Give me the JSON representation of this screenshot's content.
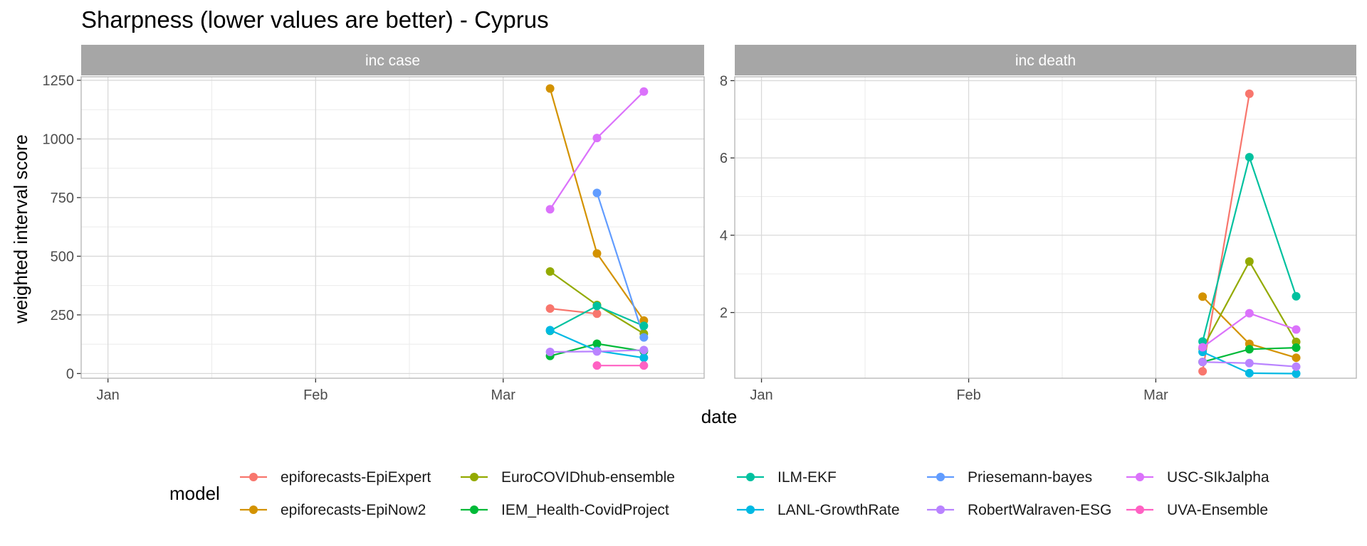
{
  "chart_data": {
    "type": "line",
    "title": "Sharpness (lower values are better) - Cyprus",
    "xlabel": "date",
    "ylabel": "weighted interval score",
    "legend_title": "model",
    "legend_position": "bottom",
    "grid": true,
    "x_ticks": [
      "Jan",
      "Feb",
      "Mar"
    ],
    "x_tick_dates": [
      "2021-01-01",
      "2021-02-01",
      "2021-03-01"
    ],
    "xlim": [
      "2020-12-28",
      "2021-03-31"
    ],
    "models": [
      {
        "name": "epiforecasts-EpiExpert",
        "color": "#F8766D"
      },
      {
        "name": "epiforecasts-EpiNow2",
        "color": "#D39200"
      },
      {
        "name": "EuroCOVIDhub-ensemble",
        "color": "#93AA00"
      },
      {
        "name": "IEM_Health-CovidProject",
        "color": "#00BA38"
      },
      {
        "name": "ILM-EKF",
        "color": "#00C19F"
      },
      {
        "name": "LANL-GrowthRate",
        "color": "#00B9E3"
      },
      {
        "name": "Priesemann-bayes",
        "color": "#619CFF"
      },
      {
        "name": "RobertWalraven-ESG",
        "color": "#B983FF"
      },
      {
        "name": "USC-SIkJalpha",
        "color": "#DB72FB"
      },
      {
        "name": "UVA-Ensemble",
        "color": "#FF61C3"
      }
    ],
    "panels": [
      {
        "label": "inc case",
        "y_ticks": [
          0,
          250,
          500,
          750,
          1000,
          1250
        ],
        "ylim": [
          -20,
          1265
        ],
        "series": [
          {
            "name": "epiforecasts-EpiExpert",
            "x": [
              "2021-03-08",
              "2021-03-15"
            ],
            "y": [
              277,
              255
            ]
          },
          {
            "name": "epiforecasts-EpiNow2",
            "x": [
              "2021-03-08",
              "2021-03-15",
              "2021-03-22"
            ],
            "y": [
              1215,
              512,
              226
            ]
          },
          {
            "name": "EuroCOVIDhub-ensemble",
            "x": [
              "2021-03-08",
              "2021-03-15",
              "2021-03-22"
            ],
            "y": [
              435,
              292,
              170
            ]
          },
          {
            "name": "IEM_Health-CovidProject",
            "x": [
              "2021-03-08",
              "2021-03-15",
              "2021-03-22"
            ],
            "y": [
              75,
              127,
              95
            ]
          },
          {
            "name": "ILM-EKF",
            "x": [
              "2021-03-08",
              "2021-03-15",
              "2021-03-22"
            ],
            "y": [
              182,
              288,
              203
            ]
          },
          {
            "name": "LANL-GrowthRate",
            "x": [
              "2021-03-08",
              "2021-03-15",
              "2021-03-22"
            ],
            "y": [
              185,
              97,
              67
            ]
          },
          {
            "name": "Priesemann-bayes",
            "x": [
              "2021-03-15",
              "2021-03-22"
            ],
            "y": [
              770,
              154
            ]
          },
          {
            "name": "RobertWalraven-ESG",
            "x": [
              "2021-03-08",
              "2021-03-15",
              "2021-03-22"
            ],
            "y": [
              92,
              94,
              100
            ]
          },
          {
            "name": "USC-SIkJalpha",
            "x": [
              "2021-03-08",
              "2021-03-15",
              "2021-03-22"
            ],
            "y": [
              700,
              1004,
              1202
            ]
          },
          {
            "name": "UVA-Ensemble",
            "x": [
              "2021-03-15",
              "2021-03-22"
            ],
            "y": [
              34,
              34
            ]
          }
        ]
      },
      {
        "label": "inc death",
        "y_ticks": [
          2,
          4,
          6,
          8
        ],
        "ylim": [
          0.3,
          8.1
        ],
        "series": [
          {
            "name": "epiforecasts-EpiExpert",
            "x": [
              "2021-03-08",
              "2021-03-15"
            ],
            "y": [
              0.48,
              7.66
            ]
          },
          {
            "name": "epiforecasts-EpiNow2",
            "x": [
              "2021-03-08",
              "2021-03-15",
              "2021-03-22"
            ],
            "y": [
              2.41,
              1.19,
              0.83
            ]
          },
          {
            "name": "EuroCOVIDhub-ensemble",
            "x": [
              "2021-03-08",
              "2021-03-15",
              "2021-03-22"
            ],
            "y": [
              1.07,
              3.32,
              1.24
            ]
          },
          {
            "name": "IEM_Health-CovidProject",
            "x": [
              "2021-03-08",
              "2021-03-15",
              "2021-03-22"
            ],
            "y": [
              0.72,
              1.05,
              1.09
            ]
          },
          {
            "name": "ILM-EKF",
            "x": [
              "2021-03-08",
              "2021-03-15",
              "2021-03-22"
            ],
            "y": [
              1.25,
              6.02,
              2.42
            ]
          },
          {
            "name": "LANL-GrowthRate",
            "x": [
              "2021-03-08",
              "2021-03-15",
              "2021-03-22"
            ],
            "y": [
              0.98,
              0.43,
              0.42
            ]
          },
          {
            "name": "RobertWalraven-ESG",
            "x": [
              "2021-03-08",
              "2021-03-15",
              "2021-03-22"
            ],
            "y": [
              0.72,
              0.69,
              0.6
            ]
          },
          {
            "name": "USC-SIkJalpha",
            "x": [
              "2021-03-08",
              "2021-03-15",
              "2021-03-22"
            ],
            "y": [
              1.1,
              1.98,
              1.56
            ]
          }
        ]
      }
    ]
  }
}
